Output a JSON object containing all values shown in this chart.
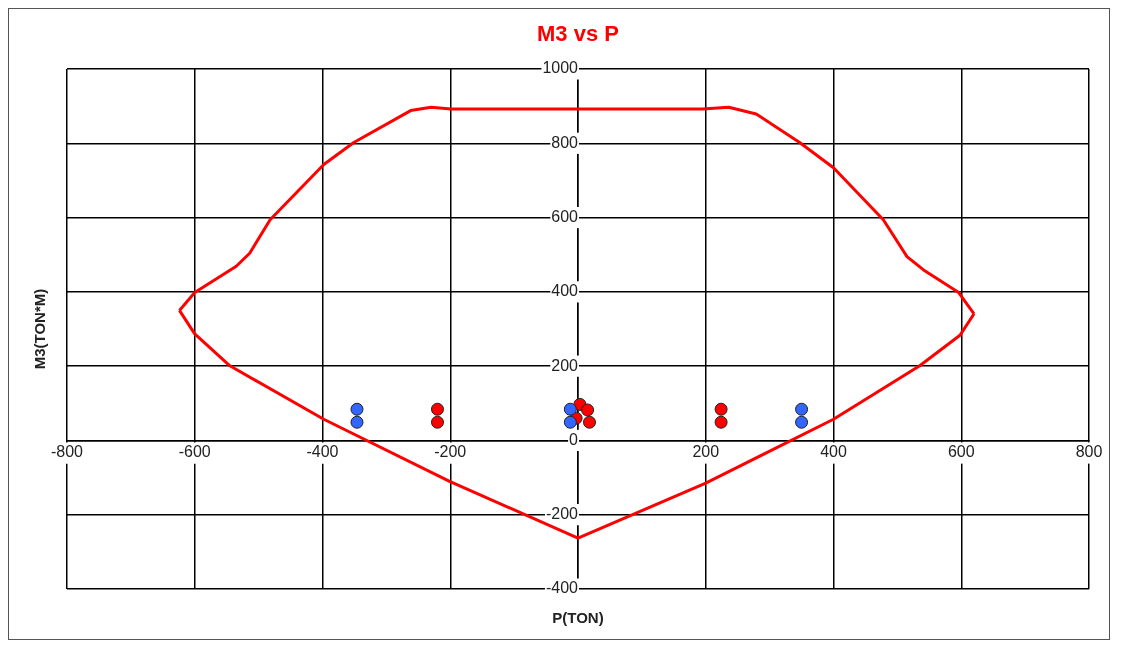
{
  "chart_data": {
    "type": "scatter",
    "title": "M3 vs P",
    "xlabel": "P(TON)",
    "ylabel": "M3(TON*M)",
    "xlim": [
      -800,
      800
    ],
    "xticks": [
      -800,
      -600,
      -400,
      -200,
      {
        "value": 0,
        "label": null
      },
      200,
      400,
      600,
      800
    ],
    "ylim": [
      -400,
      1000
    ],
    "yticks": [
      -400,
      -200,
      0,
      200,
      400,
      600,
      800,
      1000
    ],
    "grid": true,
    "legend": false,
    "marker": "circle",
    "series": [
      {
        "type": "line",
        "color": "#ff0000",
        "marker": "none",
        "x": [
          -624,
          -600,
          -535,
          -514,
          -482,
          -398,
          -351,
          -262,
          -230,
          -199,
          195,
          236,
          279,
          347,
          400,
          478,
          515,
          541,
          596,
          620
        ],
        "values": [
          350,
          398,
          469,
          504,
          594,
          743,
          802,
          888,
          897,
          892,
          892,
          897,
          879,
          802,
          734,
          594,
          495,
          459,
          398,
          341
        ]
      },
      {
        "type": "line",
        "color": "#ff0000",
        "marker": "none",
        "x": [
          -624,
          -600,
          -545,
          -398,
          -201,
          0,
          200,
          400,
          535,
          598,
          620
        ],
        "values": [
          350,
          287,
          201,
          57,
          -110,
          -263,
          -115,
          57,
          201,
          283,
          341
        ]
      },
      {
        "type": "scatter",
        "color": "#3366ff",
        "x": [
          -346,
          -346,
          350,
          350,
          -12,
          -12
        ],
        "values": [
          84,
          49,
          84,
          49,
          84,
          49
        ]
      },
      {
        "type": "scatter",
        "color": "#ff0000",
        "x": [
          -220,
          -220,
          224,
          224,
          3,
          15,
          -3,
          18
        ],
        "values": [
          84,
          49,
          84,
          49,
          97,
          82,
          60,
          49
        ]
      }
    ]
  }
}
